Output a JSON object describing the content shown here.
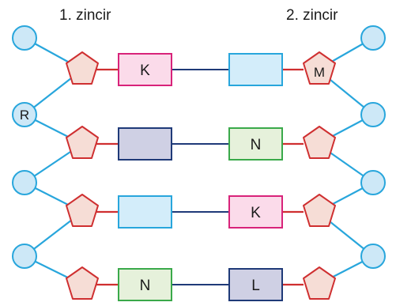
{
  "headings": {
    "strand_1": "1. zincir",
    "strand_2": "2. zincir"
  },
  "labels": {
    "phosphate_r": "R",
    "sugar_m": "M"
  },
  "strand_1_bases": [
    "K",
    "",
    "",
    "N"
  ],
  "strand_2_bases": [
    "",
    "N",
    "K",
    "L"
  ],
  "colors": {
    "phosphate_fill": "#cde8f7",
    "phosphate_stroke": "#28a6dc",
    "sugar_fill": "#f6ddd6",
    "sugar_stroke": "#cf2f30",
    "backbone_line": "#28a6dc",
    "sugar_base_link": "#cf2f30",
    "hydrogen_bond": "#1f3a78",
    "base_pink_fill": "#fbdbea",
    "base_pink_stroke": "#d8237a",
    "base_cyan_fill": "#d3edfa",
    "base_cyan_stroke": "#28a6dc",
    "base_purple_fill": "#cfd0e4",
    "base_purple_stroke": "#1f3a78",
    "base_green_fill": "#e6f1db",
    "base_green_stroke": "#3aa94a"
  }
}
